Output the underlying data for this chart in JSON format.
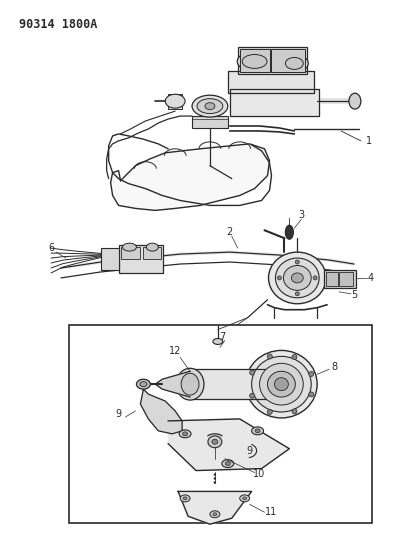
{
  "title_code": "90314 1800A",
  "background_color": "#ffffff",
  "line_color": "#2a2a2a",
  "fig_width": 3.98,
  "fig_height": 5.33,
  "dpi": 100,
  "title_fontsize": 8.5,
  "label_fontsize": 7.0
}
